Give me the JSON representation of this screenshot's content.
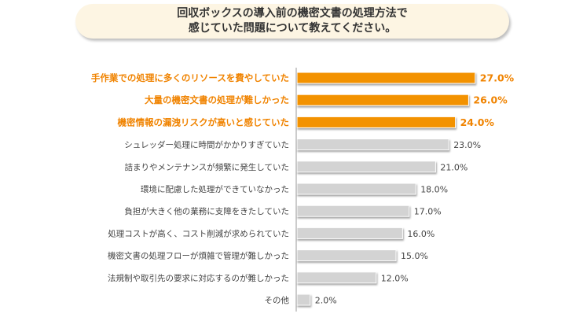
{
  "chart_data": {
    "type": "bar",
    "orientation": "horizontal",
    "title_lines": [
      "回収ボックスの導入前の機密文書の処理方法で",
      "感じていた問題について教えてください。"
    ],
    "categories": [
      "手作業での処理に多くのリソースを費やしていた",
      "大量の機密文書の処理が難しかった",
      "機密情報の漏洩リスクが高いと感じていた",
      "シュレッダー処理に時間がかかりすぎていた",
      "詰まりやメンテナンスが頻繁に発生していた",
      "環境に配慮した処理ができていなかった",
      "負担が大きく他の業務に支障をきたしていた",
      "処理コストが高く、コスト削減が求められていた",
      "機密文書の処理フローが煩雑で管理が難しかった",
      "法規制や取引先の要求に対応するのが難しかった",
      "その他"
    ],
    "values": [
      27.0,
      26.0,
      24.0,
      23.0,
      21.0,
      18.0,
      17.0,
      16.0,
      15.0,
      12.0,
      2.0
    ],
    "value_labels": [
      "27.0%",
      "26.0%",
      "24.0%",
      "23.0%",
      "21.0%",
      "18.0%",
      "17.0%",
      "16.0%",
      "15.0%",
      "12.0%",
      "2.0%"
    ],
    "highlighted_count": 3,
    "xlim": [
      0,
      30
    ],
    "unit": "%",
    "colors": {
      "highlight_bar": "#f39200",
      "highlight_text": "#f08300",
      "normal_bar": "#d3d3d3",
      "normal_text": "#444444",
      "axis": "#999999"
    }
  }
}
